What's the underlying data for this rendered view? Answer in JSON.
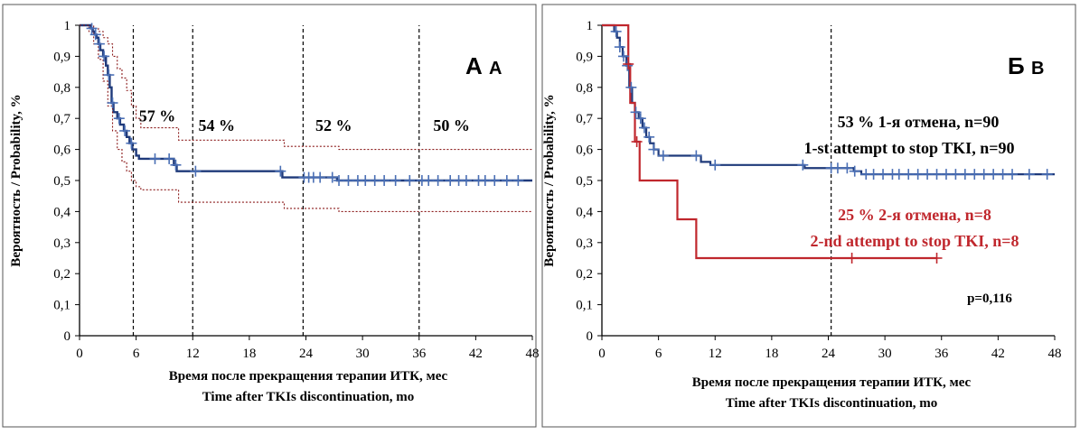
{
  "chart_data": [
    {
      "type": "line",
      "panel_label_main": "А",
      "panel_label_sub": "A",
      "xlabel_ru": "Время после прекращения  терапии ИТК, мес",
      "xlabel_en": "Time after TKIs discontinuation,  mo",
      "ylabel": "Вероятность / Probability,  %",
      "xlim": [
        0,
        48
      ],
      "ylim": [
        0,
        1
      ],
      "xticks": [
        0,
        6,
        12,
        18,
        24,
        30,
        36,
        42,
        48
      ],
      "yticks": [
        "0",
        "0,1",
        "0,2",
        "0,3",
        "0,4",
        "0,5",
        "0,6",
        "0,7",
        "0,8",
        "0,9",
        "1"
      ],
      "reference_lines_x": [
        5.7,
        12,
        23.7,
        36
      ],
      "annotations": [
        {
          "text": "57 %",
          "x": 6.3,
          "y": 0.69
        },
        {
          "text": "54 %",
          "x": 12.6,
          "y": 0.66
        },
        {
          "text": "52 %",
          "x": 25,
          "y": 0.66
        },
        {
          "text": "50 %",
          "x": 37.5,
          "y": 0.66
        }
      ],
      "colors": {
        "survival": "#1f3a7a",
        "ci": "#8b1a1a",
        "censor": "#4a6fb5",
        "refline": "#000000"
      },
      "series": [
        {
          "style": "step",
          "points": [
            [
              0,
              1
            ],
            [
              1,
              1
            ],
            [
              1.2,
              0.99
            ],
            [
              1.4,
              0.98
            ],
            [
              1.6,
              0.97
            ],
            [
              1.8,
              0.96
            ],
            [
              2,
              0.94
            ],
            [
              2.2,
              0.92
            ],
            [
              2.5,
              0.9
            ],
            [
              2.8,
              0.87
            ],
            [
              3,
              0.84
            ],
            [
              3.2,
              0.8
            ],
            [
              3.4,
              0.75
            ],
            [
              3.6,
              0.72
            ],
            [
              4,
              0.7
            ],
            [
              4.3,
              0.68
            ],
            [
              4.7,
              0.66
            ],
            [
              5,
              0.64
            ],
            [
              5.3,
              0.62
            ],
            [
              5.6,
              0.6
            ],
            [
              6,
              0.58
            ],
            [
              6.3,
              0.57
            ],
            [
              9.5,
              0.57
            ],
            [
              10,
              0.55
            ],
            [
              10.3,
              0.53
            ],
            [
              21.3,
              0.53
            ],
            [
              21.5,
              0.51
            ],
            [
              27,
              0.51
            ],
            [
              27.3,
              0.5
            ],
            [
              48,
              0.5
            ]
          ],
          "censor_x": [
            1.3,
            1.7,
            2.1,
            2.6,
            3.1,
            3.5,
            4.2,
            4.8,
            5.5,
            8,
            9.5,
            10.2,
            12.3,
            21.3,
            23.8,
            24.3,
            24.8,
            25.5,
            26.8,
            27.5,
            28.5,
            29.5,
            30.3,
            31.3,
            32.3,
            33.5,
            35,
            36.3,
            37,
            38,
            39.3,
            40.2,
            41,
            42.3,
            43,
            44,
            45.3,
            46.5
          ]
        },
        {
          "style": "step-dashed",
          "points": [
            [
              0,
              1
            ],
            [
              1,
              1
            ],
            [
              1.5,
              0.99
            ],
            [
              2,
              0.98
            ],
            [
              2.5,
              0.96
            ],
            [
              3,
              0.94
            ],
            [
              3.5,
              0.9
            ],
            [
              4,
              0.86
            ],
            [
              4.5,
              0.83
            ],
            [
              5,
              0.79
            ],
            [
              5.5,
              0.74
            ],
            [
              6,
              0.7
            ],
            [
              6.5,
              0.67
            ],
            [
              10.3,
              0.67
            ],
            [
              10.5,
              0.63
            ],
            [
              21.5,
              0.63
            ],
            [
              21.7,
              0.61
            ],
            [
              27.3,
              0.61
            ],
            [
              27.5,
              0.6
            ],
            [
              48,
              0.6
            ]
          ]
        },
        {
          "style": "step-dashed",
          "points": [
            [
              0,
              1
            ],
            [
              1,
              0.98
            ],
            [
              1.5,
              0.94
            ],
            [
              2,
              0.89
            ],
            [
              2.5,
              0.82
            ],
            [
              3,
              0.74
            ],
            [
              3.5,
              0.66
            ],
            [
              4,
              0.6
            ],
            [
              4.5,
              0.56
            ],
            [
              5,
              0.53
            ],
            [
              5.5,
              0.5
            ],
            [
              6,
              0.48
            ],
            [
              6.5,
              0.47
            ],
            [
              10.3,
              0.47
            ],
            [
              10.5,
              0.43
            ],
            [
              21.5,
              0.43
            ],
            [
              21.7,
              0.41
            ],
            [
              27.3,
              0.41
            ],
            [
              27.5,
              0.4
            ],
            [
              48,
              0.4
            ]
          ]
        }
      ]
    },
    {
      "type": "line",
      "panel_label_main": "Б",
      "panel_label_sub": "B",
      "xlabel_ru": "Время после прекращения  терапии ИТК, мес",
      "xlabel_en": "Time after TKIs discontinuation,  mo",
      "ylabel": "Вероятность / Probability,  %",
      "xlim": [
        0,
        48
      ],
      "ylim": [
        0,
        1
      ],
      "xticks": [
        0,
        6,
        12,
        18,
        24,
        30,
        36,
        42,
        48
      ],
      "yticks": [
        "0",
        "0,1",
        "0,2",
        "0,3",
        "0,4",
        "0,5",
        "0,6",
        "0,7",
        "0,8",
        "0,9",
        "1"
      ],
      "reference_lines_x": [
        24.3
      ],
      "legend_blue_line1": "53 %  1-я отмена, n=90",
      "legend_blue_line2": "1-st attempt to stop TKI, n=90",
      "legend_red_line1": "25 %  2-я отмена, n=8",
      "legend_red_line2": "2-nd attempt to stop TKI, n=8",
      "p_value": "p=0,116",
      "colors": {
        "first": "#1f3a7a",
        "second": "#c0272d",
        "censor_first": "#4a6fb5",
        "refline": "#000000"
      },
      "series": [
        {
          "style": "step",
          "color_key": "first",
          "points": [
            [
              0,
              1
            ],
            [
              1,
              1
            ],
            [
              1.3,
              0.98
            ],
            [
              1.6,
              0.96
            ],
            [
              1.9,
              0.93
            ],
            [
              2.2,
              0.9
            ],
            [
              2.6,
              0.87
            ],
            [
              2.9,
              0.8
            ],
            [
              3.2,
              0.75
            ],
            [
              3.5,
              0.72
            ],
            [
              3.9,
              0.7
            ],
            [
              4.3,
              0.67
            ],
            [
              4.7,
              0.64
            ],
            [
              5.1,
              0.62
            ],
            [
              5.5,
              0.6
            ],
            [
              6,
              0.58
            ],
            [
              10.3,
              0.58
            ],
            [
              10.5,
              0.56
            ],
            [
              11.5,
              0.55
            ],
            [
              21.3,
              0.55
            ],
            [
              21.5,
              0.54
            ],
            [
              26.5,
              0.54
            ],
            [
              26.7,
              0.53
            ],
            [
              27.5,
              0.52
            ],
            [
              48,
              0.52
            ]
          ],
          "censor_x": [
            1.5,
            1.9,
            2.3,
            2.7,
            3.1,
            3.6,
            4.1,
            4.5,
            5,
            5.5,
            6.5,
            10,
            12,
            21.3,
            24.3,
            25,
            26,
            26.8,
            28,
            28.8,
            29.8,
            30.8,
            31.5,
            32.5,
            33.5,
            34.5,
            35.5,
            36.5,
            37.5,
            38.5,
            39.5,
            40.5,
            41.5,
            42.5,
            43.5,
            45.3,
            47.2
          ]
        },
        {
          "style": "step",
          "color_key": "second",
          "points": [
            [
              0,
              1
            ],
            [
              2.8,
              1
            ],
            [
              2.8,
              0.875
            ],
            [
              3,
              0.75
            ],
            [
              3.5,
              0.625
            ],
            [
              4,
              0.5
            ],
            [
              8,
              0.5
            ],
            [
              8,
              0.375
            ],
            [
              10,
              0.375
            ],
            [
              10,
              0.25
            ],
            [
              35.5,
              0.25
            ]
          ],
          "censor_x": [
            2.8,
            3.7,
            26.5,
            35.5
          ]
        }
      ]
    }
  ]
}
